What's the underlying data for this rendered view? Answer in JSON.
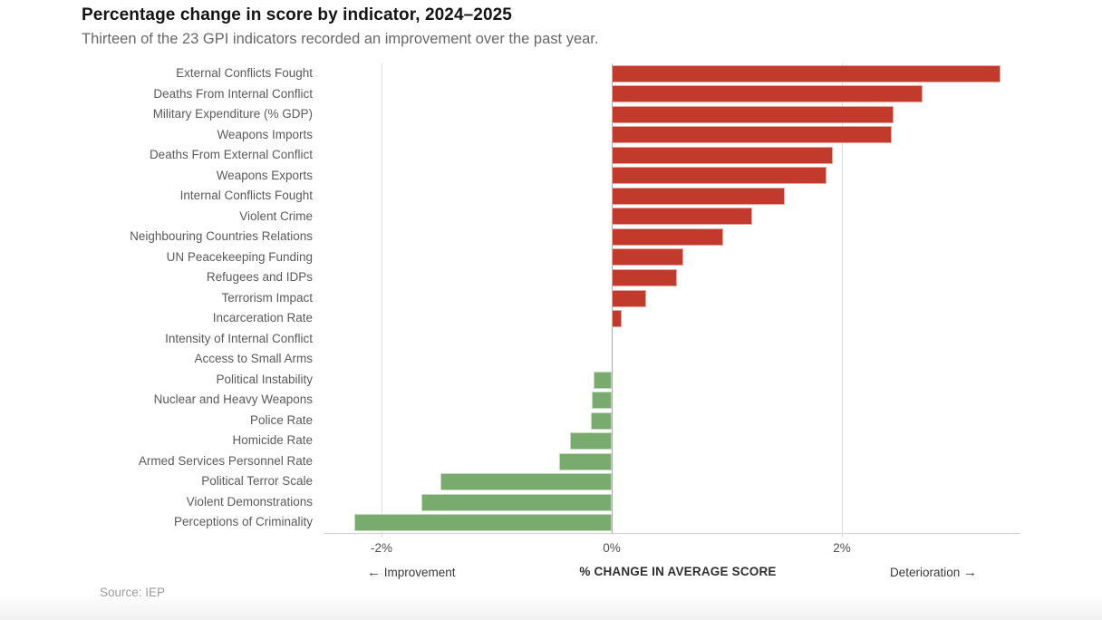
{
  "header": {
    "title": "Percentage change in score by indicator, 2024–2025",
    "subtitle": "Thirteen of the 23 GPI indicators recorded an improvement over the past year."
  },
  "chart_data": {
    "type": "bar",
    "orientation": "horizontal",
    "title": "Percentage change in score by indicator, 2024–2025",
    "xlabel": "% CHANGE IN AVERAGE SCORE",
    "ylabel": "",
    "xlim": [
      -2.5,
      3.55
    ],
    "grid": "vertical-ticks-only",
    "categories": [
      "External Conflicts Fought",
      "Deaths From Internal Conflict",
      "Military Expenditure (% GDP)",
      "Weapons Imports",
      "Deaths From External Conflict",
      "Weapons Exports",
      "Internal Conflicts Fought",
      "Violent Crime",
      "Neighbouring Countries Relations",
      "UN Peacekeeping Funding",
      "Refugees and IDPs",
      "Terrorism Impact",
      "Incarceration Rate",
      "Intensity of Internal Conflict",
      "Access to Small Arms",
      "Political Instability",
      "Nuclear and Heavy Weapons",
      "Police Rate",
      "Homicide Rate",
      "Armed Services Personnel Rate",
      "Political Terror Scale",
      "Violent Demonstrations",
      "Perceptions of Criminality"
    ],
    "values": [
      3.38,
      2.7,
      2.45,
      2.43,
      1.92,
      1.87,
      1.5,
      1.22,
      0.97,
      0.62,
      0.57,
      0.3,
      0.09,
      0.0,
      0.0,
      -0.16,
      -0.17,
      -0.18,
      -0.36,
      -0.46,
      -1.49,
      -1.65,
      -2.24
    ],
    "ticks": [
      {
        "label": "-2%",
        "value": -2
      },
      {
        "label": "0%",
        "value": 0
      },
      {
        "label": "2%",
        "value": 2
      }
    ],
    "colors": {
      "deterioration_bar": "#c13a2b",
      "improvement_bar": "#7aab6e",
      "gridline": "#dedede",
      "zero_line": "#a8a8a8",
      "axis_line": "#cfcfcf"
    },
    "legend": "none",
    "annotations": {
      "improvement_label": "Improvement",
      "deterioration_label": "Deterioration",
      "left_arrow": "←",
      "right_arrow": "→"
    }
  },
  "footer": {
    "source": "Source: IEP"
  }
}
